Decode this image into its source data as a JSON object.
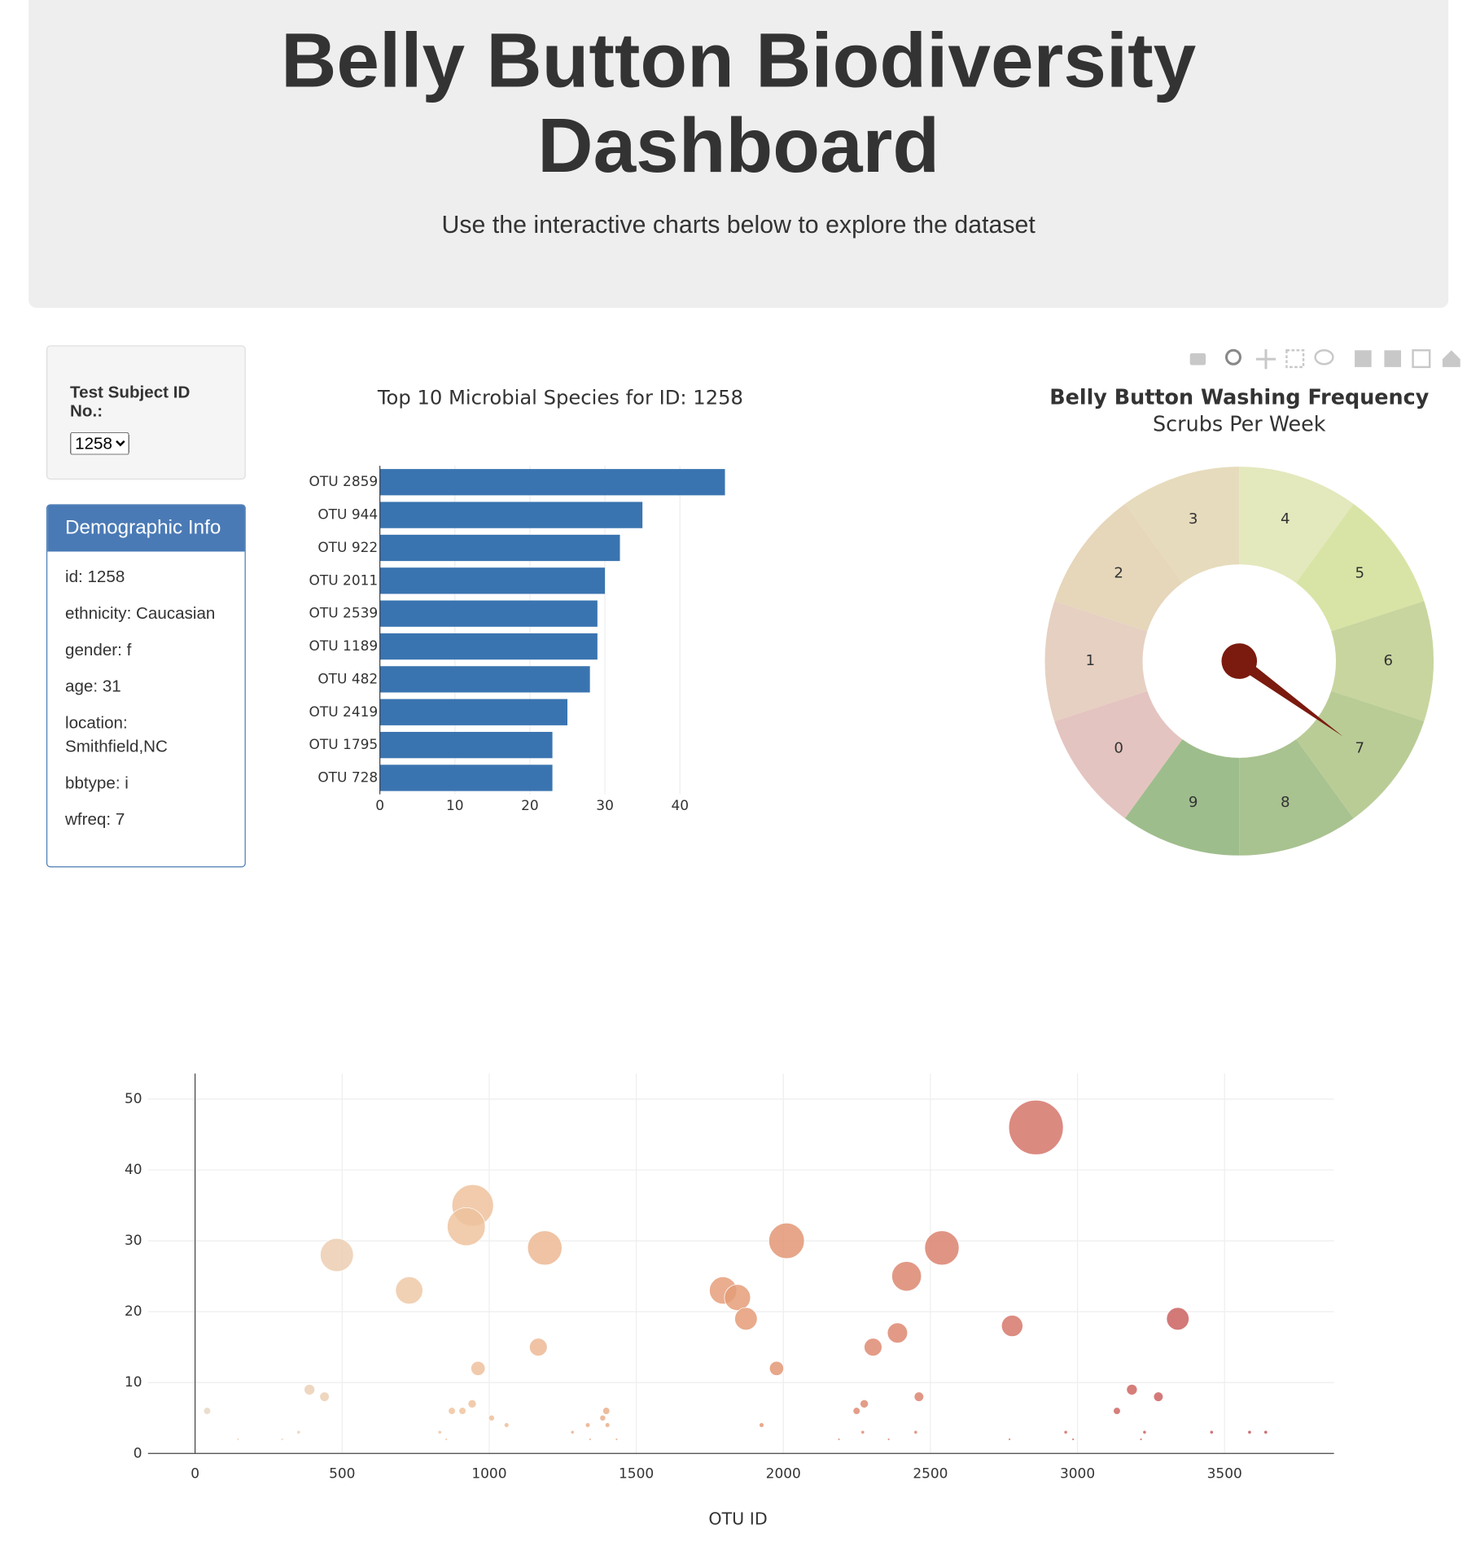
{
  "header": {
    "title": "Belly Button Biodiversity Dashboard",
    "subtitle": "Use the interactive charts below to explore the dataset"
  },
  "selector": {
    "label": "Test Subject ID No.:",
    "selected": "1258"
  },
  "demographic": {
    "title": "Demographic Info",
    "items": [
      "id: 1258",
      "ethnicity: Caucasian",
      "gender: f",
      "age: 31",
      "location: Smithfield,NC",
      "bbtype: i",
      "wfreq: 7"
    ]
  },
  "chart_data": [
    {
      "type": "bar",
      "orientation": "h",
      "title": "Top 10 Microbial Species for ID: 1258",
      "categories": [
        "OTU 2859",
        "OTU 944",
        "OTU 922",
        "OTU 2011",
        "OTU 2539",
        "OTU 1189",
        "OTU 482",
        "OTU 2419",
        "OTU 1795",
        "OTU 728"
      ],
      "values": [
        46,
        35,
        32,
        30,
        29,
        29,
        28,
        25,
        23,
        23
      ],
      "color": "#3a74b0",
      "xlim": [
        0,
        48.4
      ],
      "xticks": [
        0,
        10,
        20,
        30,
        40
      ],
      "grid": true
    },
    {
      "type": "gauge",
      "title": "Belly Button Washing Frequency",
      "subtitle": "Scrubs Per Week",
      "value": 7,
      "categories": [
        "0",
        "1",
        "2",
        "3",
        "4",
        "5",
        "6",
        "7",
        "8",
        "9"
      ],
      "colors": [
        "#e4c4c0",
        "#e6d0c2",
        "#e6d6ba",
        "#e6dbbc",
        "#e4e8bd",
        "#d8e4a5",
        "#c8d59e",
        "#b9cc96",
        "#a8c290",
        "#9ebd8c"
      ],
      "needle_color": "#7b1a0f"
    },
    {
      "type": "bubble",
      "x_label": "OTU ID",
      "x": [
        2859,
        944,
        922,
        2011,
        2539,
        1189,
        482,
        2419,
        1795,
        728,
        1844,
        1873,
        3341,
        2778,
        2388,
        1167,
        2305,
        962,
        1977,
        3185,
        389,
        440,
        3275,
        2461,
        2275,
        942,
        41,
        873,
        909,
        1398,
        2249,
        3134,
        1008,
        1386,
        1059,
        1335,
        1402,
        1926,
        352,
        832,
        1283,
        2270,
        2450,
        2960,
        3228,
        3456,
        3585,
        3640,
        146,
        296,
        854,
        1343,
        1433,
        2189,
        2358,
        2769,
        2985,
        3216
      ],
      "values": [
        46,
        35,
        32,
        30,
        29,
        29,
        28,
        25,
        23,
        23,
        22,
        19,
        19,
        18,
        17,
        15,
        15,
        12,
        12,
        9,
        9,
        8,
        8,
        8,
        7,
        7,
        6,
        6,
        6,
        6,
        6,
        6,
        5,
        5,
        4,
        4,
        4,
        4,
        3,
        3,
        3,
        3,
        3,
        3,
        3,
        3,
        3,
        3,
        2,
        2,
        2,
        2,
        2,
        2,
        2,
        2,
        2,
        2
      ],
      "colorscale": [
        "#e6dccf",
        "#f0c6a2",
        "#e59d78",
        "#d5756a",
        "#c04a55"
      ],
      "xlim": [
        -160,
        3872
      ],
      "xticks": [
        0,
        500,
        1000,
        1500,
        2000,
        2500,
        3000,
        3500
      ],
      "ylim": [
        0,
        53.6
      ],
      "yticks": [
        0,
        10,
        20,
        30,
        40,
        50
      ],
      "grid": true
    }
  ]
}
